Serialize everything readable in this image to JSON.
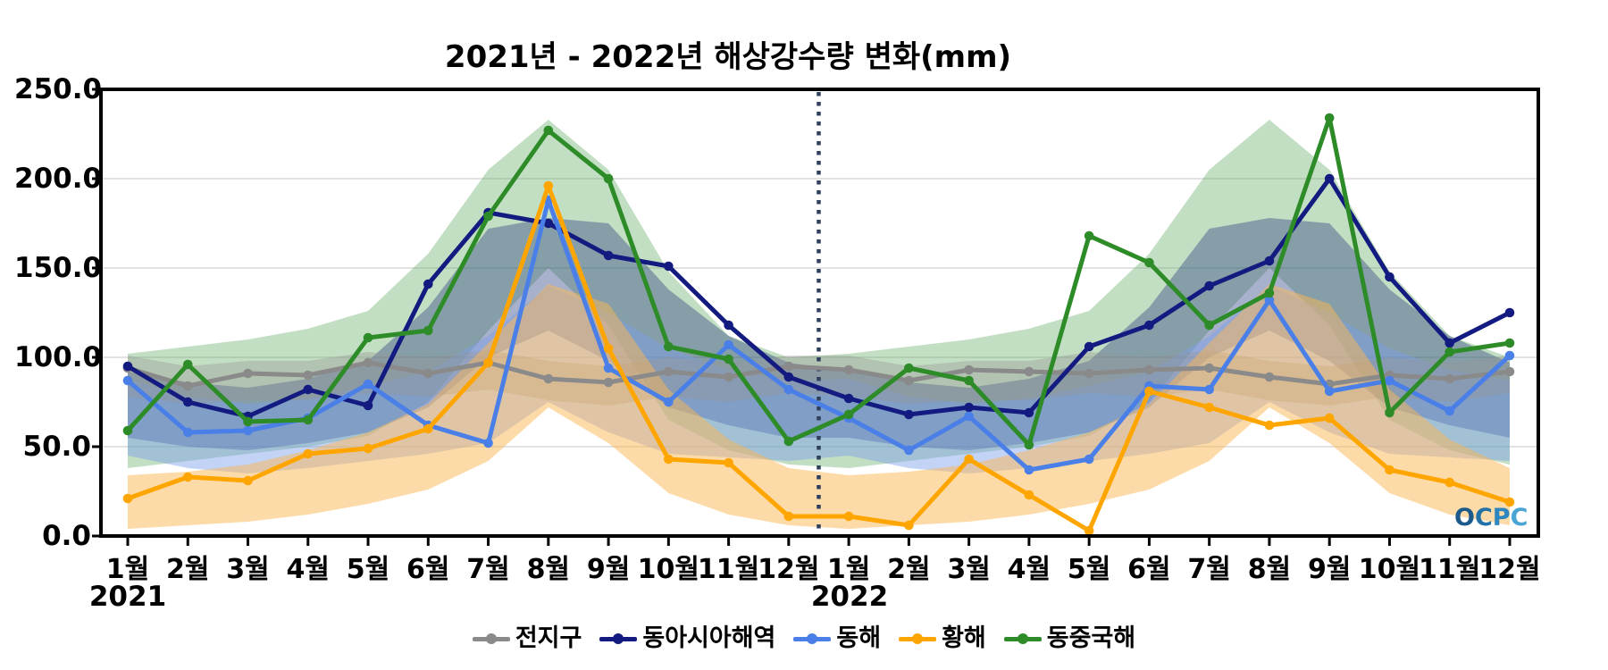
{
  "chart_data": {
    "type": "line",
    "title": "2021년 - 2022년 해상강수량 변화(mm)",
    "xlabel": "",
    "ylabel": "",
    "ylim": [
      0,
      250
    ],
    "yticks": [
      0,
      50,
      100,
      150,
      200,
      250
    ],
    "ytick_labels": [
      "0.0",
      "50.0",
      "100.0",
      "150.0",
      "200.0",
      "250.0"
    ],
    "months": [
      "1월",
      "2월",
      "3월",
      "4월",
      "5월",
      "6월",
      "7월",
      "8월",
      "9월",
      "10월",
      "11월",
      "12월"
    ],
    "years": [
      "2021",
      "2022"
    ],
    "grid": "horizontal",
    "legend_position": "bottom",
    "year_separator": {
      "style": "dotted-vertical-line",
      "between": "2021-12월 / 2022-1월",
      "color": "#2f3f5c"
    },
    "series": [
      {
        "name": "전지구",
        "color": "#8a8a8a",
        "band_color": "rgba(150,150,150,0.38)",
        "values": [
          94,
          84,
          91,
          90,
          97,
          91,
          97,
          88,
          86,
          92,
          89,
          95,
          93,
          87,
          93,
          92,
          91,
          93,
          94,
          89,
          85,
          90,
          88,
          92
        ],
        "climatology_band": {
          "lower": [
            78,
            74,
            76,
            76,
            80,
            78,
            82,
            76,
            73,
            78,
            75,
            80
          ],
          "upper": [
            101,
            95,
            98,
            98,
            103,
            100,
            104,
            98,
            95,
            100,
            97,
            101
          ]
        }
      },
      {
        "name": "동아시아해역",
        "color": "#141b80",
        "band_color": "rgba(47,69,131,0.42)",
        "values": [
          95,
          75,
          67,
          82,
          73,
          141,
          181,
          175,
          157,
          151,
          118,
          89,
          77,
          68,
          72,
          69,
          106,
          118,
          140,
          154,
          200,
          145,
          108,
          125
        ],
        "climatology_band": {
          "lower": [
            55,
            50,
            48,
            52,
            58,
            72,
            100,
            115,
            98,
            72,
            62,
            55
          ],
          "upper": [
            92,
            86,
            83,
            88,
            98,
            128,
            172,
            178,
            175,
            138,
            112,
            97
          ]
        }
      },
      {
        "name": "동해",
        "color": "#4a7fe8",
        "band_color": "rgba(122,158,235,0.45)",
        "values": [
          87,
          58,
          59,
          66,
          85,
          62,
          52,
          188,
          94,
          75,
          107,
          82,
          66,
          48,
          67,
          37,
          43,
          84,
          82,
          132,
          81,
          87,
          70,
          101
        ],
        "climatology_band": {
          "lower": [
            45,
            38,
            35,
            38,
            42,
            46,
            52,
            75,
            58,
            46,
            44,
            42
          ],
          "upper": [
            88,
            78,
            74,
            77,
            84,
            92,
            112,
            140,
            125,
            105,
            93,
            87
          ]
        }
      },
      {
        "name": "황해",
        "color": "#ffa500",
        "band_color": "rgba(252,183,83,0.5)",
        "values": [
          21,
          33,
          31,
          46,
          49,
          60,
          97,
          196,
          105,
          43,
          41,
          11,
          11,
          6,
          43,
          23,
          3,
          81,
          72,
          62,
          66,
          37,
          30,
          19
        ],
        "climatology_band": {
          "lower": [
            4,
            6,
            8,
            12,
            18,
            26,
            42,
            72,
            52,
            24,
            12,
            6
          ],
          "upper": [
            34,
            36,
            40,
            48,
            58,
            74,
            108,
            141,
            130,
            82,
            54,
            38
          ]
        }
      },
      {
        "name": "동중국해",
        "color": "#2d8c28",
        "band_color": "rgba(96,170,96,0.38)",
        "values": [
          59,
          96,
          64,
          65,
          111,
          115,
          179,
          227,
          200,
          106,
          99,
          53,
          68,
          94,
          87,
          51,
          168,
          153,
          118,
          136,
          234,
          69,
          103,
          108
        ],
        "climatology_band": {
          "lower": [
            38,
            42,
            46,
            50,
            56,
            75,
            115,
            150,
            118,
            65,
            48,
            40
          ],
          "upper": [
            102,
            106,
            110,
            116,
            126,
            158,
            205,
            233,
            205,
            148,
            112,
            100
          ]
        }
      }
    ]
  },
  "watermark": {
    "text": "OCPC",
    "letter_colors": [
      "#1b5a8a",
      "#2272a8",
      "#2d86c0",
      "#4aa5d4"
    ]
  }
}
